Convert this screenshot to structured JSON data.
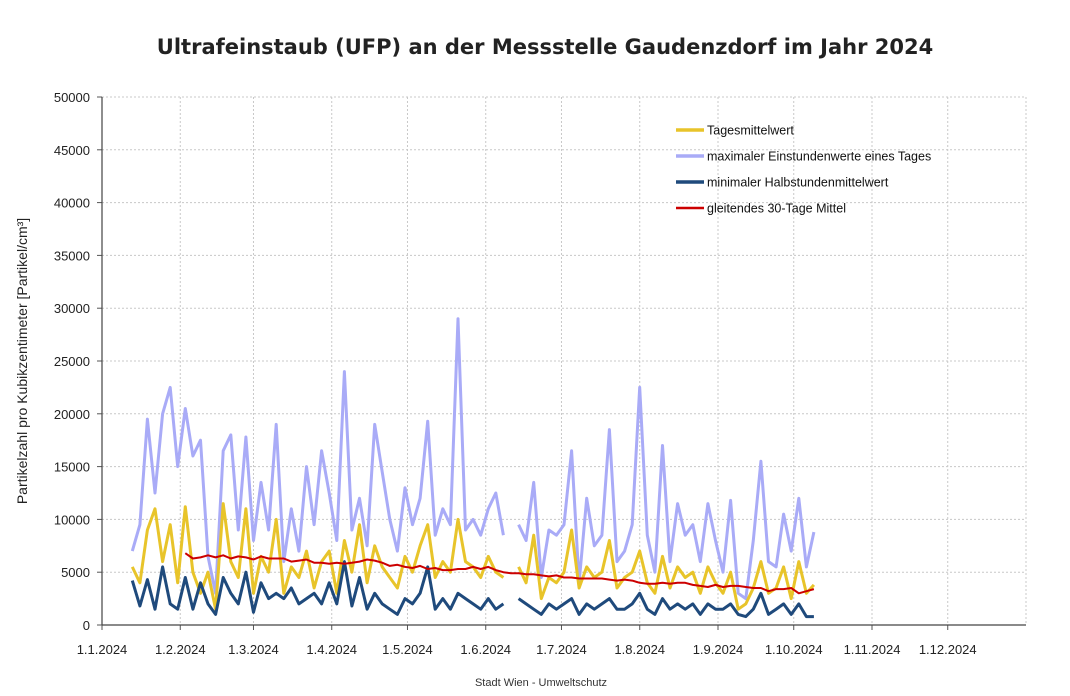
{
  "chart_data": {
    "type": "line",
    "title": "Ultrafeinstaub (UFP) an der Messstelle Gaudenzdorf  im Jahr 2024",
    "ylabel": "Partikelzahl  pro Kubikzentimeter [Partikel/cm³]",
    "xlabel": "",
    "footer": "Stadt Wien - Umweltschutz",
    "ylim": [
      0,
      50000
    ],
    "xlim": [
      "2024-01-01",
      "2025-01-01"
    ],
    "grid": true,
    "legend_position": "top-right",
    "y_ticks": [
      "0",
      "5000",
      "10000",
      "15000",
      "20000",
      "25000",
      "30000",
      "35000",
      "40000",
      "45000",
      "50000"
    ],
    "x_ticks": [
      {
        "date": "2024-01-01",
        "label": "1.1.2024"
      },
      {
        "date": "2024-02-01",
        "label": "1.2.2024"
      },
      {
        "date": "2024-03-01",
        "label": "1.3.2024"
      },
      {
        "date": "2024-04-01",
        "label": "1.4.2024"
      },
      {
        "date": "2024-05-01",
        "label": "1.5.2024"
      },
      {
        "date": "2024-06-01",
        "label": "1.6.2024"
      },
      {
        "date": "2024-07-01",
        "label": "1.7.2024"
      },
      {
        "date": "2024-08-01",
        "label": "1.8.2024"
      },
      {
        "date": "2024-09-01",
        "label": "1.9.2024"
      },
      {
        "date": "2024-10-01",
        "label": "1.10.2024"
      },
      {
        "date": "2024-11-01",
        "label": "1.11.2024"
      },
      {
        "date": "2024-12-01",
        "label": "1.12.2024"
      }
    ],
    "x": [
      "2024-01-13",
      "2024-01-16",
      "2024-01-19",
      "2024-01-22",
      "2024-01-25",
      "2024-01-28",
      "2024-01-31",
      "2024-02-03",
      "2024-02-06",
      "2024-02-09",
      "2024-02-12",
      "2024-02-15",
      "2024-02-18",
      "2024-02-21",
      "2024-02-24",
      "2024-02-27",
      "2024-03-01",
      "2024-03-04",
      "2024-03-07",
      "2024-03-10",
      "2024-03-13",
      "2024-03-16",
      "2024-03-19",
      "2024-03-22",
      "2024-03-25",
      "2024-03-28",
      "2024-03-31",
      "2024-04-03",
      "2024-04-06",
      "2024-04-09",
      "2024-04-12",
      "2024-04-15",
      "2024-04-18",
      "2024-04-21",
      "2024-04-24",
      "2024-04-27",
      "2024-04-30",
      "2024-05-03",
      "2024-05-06",
      "2024-05-09",
      "2024-05-12",
      "2024-05-15",
      "2024-05-18",
      "2024-05-21",
      "2024-05-24",
      "2024-05-27",
      "2024-05-30",
      "2024-06-02",
      "2024-06-05",
      "2024-06-08",
      "2024-06-11",
      "2024-06-14",
      "2024-06-17",
      "2024-06-20",
      "2024-06-23",
      "2024-06-26",
      "2024-06-29",
      "2024-07-02",
      "2024-07-05",
      "2024-07-08",
      "2024-07-11",
      "2024-07-14",
      "2024-07-17",
      "2024-07-20",
      "2024-07-23",
      "2024-07-26",
      "2024-07-29",
      "2024-08-01",
      "2024-08-04",
      "2024-08-07",
      "2024-08-10",
      "2024-08-13",
      "2024-08-16",
      "2024-08-19",
      "2024-08-22",
      "2024-08-25",
      "2024-08-28",
      "2024-08-31",
      "2024-09-03",
      "2024-09-06",
      "2024-09-09",
      "2024-09-12",
      "2024-09-15",
      "2024-09-18",
      "2024-09-21",
      "2024-09-24",
      "2024-09-27",
      "2024-09-30",
      "2024-10-03",
      "2024-10-06",
      "2024-10-09"
    ],
    "series": [
      {
        "name": "Tagesmittelwert",
        "color": "#e8c42a",
        "width": 3,
        "values": [
          5500,
          4000,
          9000,
          11000,
          6000,
          9500,
          4000,
          11200,
          5000,
          3000,
          5000,
          1500,
          11500,
          6000,
          4500,
          11000,
          3000,
          6500,
          5000,
          10000,
          3000,
          5500,
          4500,
          7000,
          3500,
          6000,
          7000,
          3000,
          8000,
          5000,
          9500,
          4000,
          7500,
          5500,
          4500,
          3500,
          6500,
          5000,
          7500,
          9500,
          4500,
          6000,
          5000,
          10000,
          6000,
          5500,
          4500,
          6500,
          5000,
          4500,
          null,
          5500,
          4000,
          8500,
          2500,
          4500,
          4000,
          5000,
          9000,
          3500,
          5500,
          4500,
          5000,
          8000,
          3500,
          4500,
          5000,
          7000,
          4000,
          3000,
          6500,
          3500,
          5500,
          4500,
          5000,
          3000,
          5500,
          4000,
          3000,
          5000,
          1500,
          2000,
          3500,
          6000,
          3000,
          3500,
          5500,
          2500,
          6000,
          3000,
          3800
        ]
      },
      {
        "name": "maximaler Einstundenwerte eines Tages",
        "color": "#a9abf7",
        "width": 3,
        "values": [
          7000,
          9500,
          19500,
          12500,
          20000,
          22500,
          15000,
          20500,
          16000,
          17500,
          6500,
          3000,
          16500,
          18000,
          9000,
          17800,
          8000,
          13500,
          9000,
          19000,
          6000,
          11000,
          7000,
          15000,
          9500,
          16500,
          12500,
          8000,
          24000,
          9000,
          12000,
          7500,
          19000,
          14500,
          10000,
          7000,
          13000,
          9500,
          12000,
          19300,
          8500,
          11000,
          9500,
          29000,
          9000,
          10000,
          8500,
          11000,
          12500,
          8500,
          null,
          9500,
          8000,
          13500,
          4500,
          9000,
          8500,
          9500,
          16500,
          4000,
          12000,
          7500,
          8500,
          18500,
          6000,
          7000,
          9500,
          22500,
          8500,
          5000,
          17000,
          6000,
          11500,
          8500,
          9500,
          6000,
          11500,
          8000,
          5000,
          11800,
          3000,
          2500,
          8000,
          15500,
          6000,
          5500,
          10500,
          7000,
          12000,
          5500,
          8800
        ]
      },
      {
        "name": "minimaler Halbstundenmittelwert",
        "color": "#1f4a7c",
        "width": 3,
        "values": [
          4200,
          1800,
          4300,
          1500,
          5500,
          2000,
          1500,
          4500,
          1500,
          4000,
          2000,
          1000,
          4500,
          3000,
          2000,
          5000,
          1200,
          4000,
          2500,
          3000,
          2500,
          3500,
          2000,
          2500,
          3000,
          2000,
          4000,
          2000,
          6000,
          1800,
          4500,
          1500,
          3000,
          2000,
          1500,
          1000,
          2500,
          2000,
          3000,
          5500,
          1500,
          2500,
          1500,
          3000,
          2500,
          2000,
          1500,
          2500,
          1500,
          2000,
          null,
          2500,
          2000,
          1500,
          1000,
          2000,
          1500,
          2000,
          2500,
          1000,
          2000,
          1500,
          2000,
          2500,
          1500,
          1500,
          2000,
          3000,
          1500,
          1000,
          2500,
          1500,
          2000,
          1500,
          2000,
          1000,
          2000,
          1500,
          1500,
          2000,
          1000,
          800,
          1500,
          3000,
          1000,
          1500,
          2000,
          1000,
          2000,
          800,
          800
        ]
      },
      {
        "name": "gleitendes 30-Tage Mittel",
        "color": "#cc0000",
        "width": 2,
        "values": [
          null,
          null,
          null,
          null,
          null,
          null,
          null,
          6800,
          6300,
          6400,
          6600,
          6400,
          6600,
          6300,
          6500,
          6400,
          6200,
          6500,
          6300,
          6300,
          6300,
          6000,
          6100,
          6200,
          5900,
          5900,
          5800,
          5900,
          5800,
          5900,
          6000,
          6200,
          6100,
          5900,
          5600,
          5700,
          5500,
          5400,
          5600,
          5300,
          5400,
          5200,
          5200,
          5300,
          5300,
          5500,
          5300,
          5500,
          5200,
          5000,
          4900,
          4900,
          4800,
          4800,
          4700,
          4600,
          4700,
          4500,
          4500,
          4400,
          4400,
          4400,
          4400,
          4300,
          4200,
          4300,
          4200,
          4000,
          3900,
          3900,
          4000,
          3900,
          4000,
          4000,
          3800,
          3700,
          3600,
          3800,
          3600,
          3700,
          3700,
          3600,
          3500,
          3500,
          3200,
          3400,
          3400,
          3500,
          3000,
          3200,
          3400
        ]
      }
    ]
  }
}
